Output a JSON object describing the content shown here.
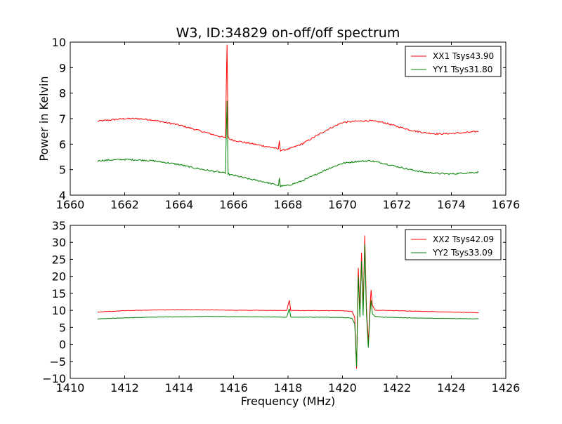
{
  "chart_data": [
    {
      "type": "line",
      "title": "W3, ID:34829 on-off/off spectrum",
      "xlabel": "",
      "ylabel": "Power in Kelvin",
      "xlim": [
        1660,
        1676
      ],
      "ylim": [
        4,
        10
      ],
      "xticks": [
        1660,
        1662,
        1664,
        1666,
        1668,
        1670,
        1672,
        1674,
        1676
      ],
      "yticks": [
        4,
        5,
        6,
        7,
        8,
        9,
        10
      ],
      "legend_position": "top-right",
      "grid": false,
      "series": [
        {
          "name": "XX1 Tsys43.90",
          "color": "#ff0000",
          "x": [
            1661.0,
            1661.5,
            1662.0,
            1662.5,
            1663.0,
            1663.5,
            1664.0,
            1664.5,
            1665.0,
            1665.5,
            1665.7,
            1665.76,
            1665.8,
            1665.85,
            1666.0,
            1666.5,
            1667.0,
            1667.5,
            1667.65,
            1667.68,
            1667.72,
            1668.0,
            1668.5,
            1669.0,
            1669.5,
            1670.0,
            1670.5,
            1671.0,
            1671.5,
            1672.0,
            1672.5,
            1673.0,
            1673.5,
            1674.0,
            1674.5,
            1675.0
          ],
          "y": [
            6.9,
            6.95,
            7.0,
            7.0,
            6.95,
            6.85,
            6.75,
            6.6,
            6.45,
            6.3,
            6.25,
            9.9,
            6.3,
            6.2,
            6.15,
            6.05,
            5.95,
            5.85,
            5.8,
            6.15,
            5.75,
            5.8,
            6.0,
            6.3,
            6.6,
            6.85,
            6.9,
            6.92,
            6.85,
            6.7,
            6.55,
            6.45,
            6.4,
            6.42,
            6.45,
            6.5
          ]
        },
        {
          "name": "YY1 Tsys31.80",
          "color": "#008000",
          "x": [
            1661.0,
            1661.5,
            1662.0,
            1662.5,
            1663.0,
            1663.5,
            1664.0,
            1664.5,
            1665.0,
            1665.5,
            1665.7,
            1665.76,
            1665.8,
            1665.85,
            1666.0,
            1666.5,
            1667.0,
            1667.5,
            1667.65,
            1667.68,
            1667.72,
            1668.0,
            1668.5,
            1669.0,
            1669.5,
            1670.0,
            1670.5,
            1671.0,
            1671.5,
            1672.0,
            1672.5,
            1673.0,
            1673.5,
            1674.0,
            1674.5,
            1675.0
          ],
          "y": [
            5.35,
            5.38,
            5.4,
            5.38,
            5.35,
            5.28,
            5.2,
            5.08,
            4.98,
            4.9,
            4.85,
            7.7,
            4.85,
            4.8,
            4.78,
            4.65,
            4.55,
            4.42,
            4.38,
            4.65,
            4.35,
            4.38,
            4.55,
            4.8,
            5.05,
            5.25,
            5.32,
            5.35,
            5.25,
            5.12,
            5.0,
            4.9,
            4.85,
            4.83,
            4.87,
            4.9
          ]
        }
      ]
    },
    {
      "type": "line",
      "title": "",
      "xlabel": "Frequency (MHz)",
      "ylabel": "",
      "xlim": [
        1410,
        1426
      ],
      "ylim": [
        -10,
        35
      ],
      "xticks": [
        1410,
        1412,
        1414,
        1416,
        1418,
        1420,
        1422,
        1424,
        1426
      ],
      "yticks": [
        -10,
        -5,
        0,
        5,
        10,
        15,
        20,
        25,
        30,
        35
      ],
      "legend_position": "top-right",
      "grid": false,
      "series": [
        {
          "name": "XX2 Tsys42.09",
          "color": "#ff0000",
          "x": [
            1411.0,
            1412.0,
            1413.0,
            1414.0,
            1415.0,
            1416.0,
            1417.0,
            1417.95,
            1418.05,
            1418.1,
            1419.0,
            1420.0,
            1420.35,
            1420.45,
            1420.52,
            1420.58,
            1420.64,
            1420.7,
            1420.76,
            1420.82,
            1420.88,
            1420.95,
            1421.0,
            1421.05,
            1421.1,
            1421.2,
            1421.5,
            1422.0,
            1423.0,
            1424.0,
            1425.0
          ],
          "y": [
            9.5,
            9.9,
            10.1,
            10.2,
            10.15,
            10.05,
            10.0,
            9.95,
            13.0,
            9.95,
            9.95,
            9.9,
            9.7,
            8.0,
            -7.2,
            22.5,
            10.0,
            27.0,
            10.5,
            32.0,
            11.0,
            0.5,
            9.5,
            16.0,
            11.5,
            10.0,
            10.0,
            9.9,
            9.7,
            9.5,
            9.3
          ]
        },
        {
          "name": "YY2 Tsys33.09",
          "color": "#008000",
          "x": [
            1411.0,
            1412.0,
            1413.0,
            1414.0,
            1415.0,
            1416.0,
            1417.0,
            1417.95,
            1418.05,
            1418.1,
            1419.0,
            1420.0,
            1420.35,
            1420.45,
            1420.52,
            1420.58,
            1420.64,
            1420.7,
            1420.76,
            1420.82,
            1420.88,
            1420.95,
            1421.0,
            1421.05,
            1421.1,
            1421.2,
            1421.5,
            1422.0,
            1423.0,
            1424.0,
            1425.0
          ],
          "y": [
            7.5,
            7.8,
            8.0,
            8.1,
            8.2,
            8.15,
            8.1,
            8.0,
            10.5,
            8.0,
            8.0,
            7.9,
            7.7,
            6.0,
            -6.5,
            20.0,
            8.0,
            24.5,
            8.5,
            29.5,
            9.0,
            -1.0,
            8.0,
            13.0,
            9.0,
            8.2,
            8.0,
            7.9,
            7.7,
            7.6,
            7.5
          ]
        }
      ]
    }
  ]
}
